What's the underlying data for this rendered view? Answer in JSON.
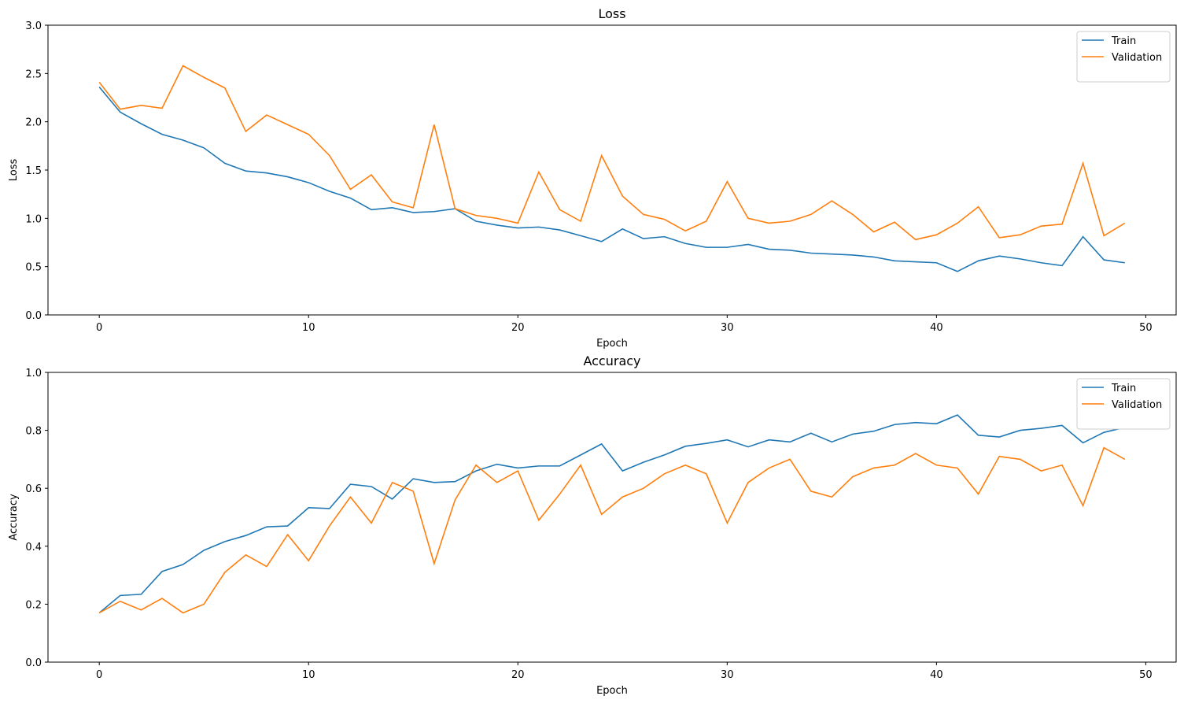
{
  "chart_data": [
    {
      "type": "line",
      "title": "Loss",
      "x_label": "Epoch",
      "y_label": "Loss",
      "x": [
        0,
        1,
        2,
        3,
        4,
        5,
        6,
        7,
        8,
        9,
        10,
        11,
        12,
        13,
        14,
        15,
        16,
        17,
        18,
        19,
        20,
        21,
        22,
        23,
        24,
        25,
        26,
        27,
        28,
        29,
        30,
        31,
        32,
        33,
        34,
        35,
        36,
        37,
        38,
        39,
        40,
        41,
        42,
        43,
        44,
        45,
        46,
        47,
        48,
        49
      ],
      "series": [
        {
          "name": "Train",
          "color": "#1f77b4",
          "values": [
            2.36,
            2.1,
            1.98,
            1.87,
            1.81,
            1.73,
            1.57,
            1.49,
            1.47,
            1.43,
            1.37,
            1.28,
            1.21,
            1.09,
            1.11,
            1.06,
            1.07,
            1.1,
            0.97,
            0.93,
            0.9,
            0.91,
            0.88,
            0.82,
            0.76,
            0.89,
            0.79,
            0.81,
            0.74,
            0.7,
            0.7,
            0.73,
            0.68,
            0.67,
            0.64,
            0.63,
            0.62,
            0.6,
            0.56,
            0.55,
            0.54,
            0.45,
            0.56,
            0.61,
            0.58,
            0.54,
            0.51,
            0.81,
            0.57,
            0.54
          ]
        },
        {
          "name": "Validation",
          "color": "#ff7f0e",
          "values": [
            2.41,
            2.13,
            2.17,
            2.14,
            2.58,
            2.46,
            2.35,
            1.9,
            2.07,
            1.97,
            1.87,
            1.65,
            1.3,
            1.45,
            1.17,
            1.11,
            1.97,
            1.1,
            1.03,
            1.0,
            0.95,
            1.48,
            1.09,
            0.97,
            1.65,
            1.23,
            1.04,
            0.99,
            0.87,
            0.97,
            1.38,
            1.0,
            0.95,
            0.97,
            1.04,
            1.18,
            1.04,
            0.86,
            0.96,
            0.78,
            0.83,
            0.95,
            1.12,
            0.8,
            0.83,
            0.92,
            0.94,
            1.57,
            0.82,
            0.95
          ]
        }
      ],
      "xlim": [
        -2.45,
        51.45
      ],
      "xticks": [
        0,
        10,
        20,
        30,
        40,
        50
      ],
      "ylim": [
        0,
        3
      ],
      "yticks": [
        {
          "value": 0,
          "label": "0.0"
        },
        0.5,
        {
          "value": 1,
          "label": "1.0"
        },
        1.5,
        {
          "value": 2,
          "label": "2.0"
        },
        2.5,
        {
          "value": 3,
          "label": "3.0"
        }
      ],
      "legend": "upper right"
    },
    {
      "type": "line",
      "title": "Accuracy",
      "x_label": "Epoch",
      "y_label": "Accuracy",
      "x": [
        0,
        1,
        2,
        3,
        4,
        5,
        6,
        7,
        8,
        9,
        10,
        11,
        12,
        13,
        14,
        15,
        16,
        17,
        18,
        19,
        20,
        21,
        22,
        23,
        24,
        25,
        26,
        27,
        28,
        29,
        30,
        31,
        32,
        33,
        34,
        35,
        36,
        37,
        38,
        39,
        40,
        41,
        42,
        43,
        44,
        45,
        46,
        47,
        48,
        49
      ],
      "series": [
        {
          "name": "Train",
          "color": "#1f77b4",
          "values": [
            0.17,
            0.23,
            0.234,
            0.313,
            0.337,
            0.386,
            0.416,
            0.437,
            0.467,
            0.47,
            0.533,
            0.53,
            0.614,
            0.606,
            0.563,
            0.633,
            0.62,
            0.623,
            0.66,
            0.683,
            0.67,
            0.677,
            0.677,
            0.715,
            0.753,
            0.66,
            0.69,
            0.715,
            0.745,
            0.755,
            0.767,
            0.743,
            0.767,
            0.76,
            0.79,
            0.76,
            0.787,
            0.797,
            0.82,
            0.827,
            0.823,
            0.853,
            0.783,
            0.777,
            0.8,
            0.807,
            0.817,
            0.757,
            0.793,
            0.81
          ]
        },
        {
          "name": "Validation",
          "color": "#ff7f0e",
          "values": [
            0.17,
            0.21,
            0.18,
            0.22,
            0.17,
            0.2,
            0.31,
            0.37,
            0.33,
            0.44,
            0.35,
            0.47,
            0.57,
            0.48,
            0.62,
            0.59,
            0.34,
            0.56,
            0.68,
            0.62,
            0.66,
            0.49,
            0.58,
            0.68,
            0.51,
            0.57,
            0.6,
            0.65,
            0.68,
            0.65,
            0.48,
            0.62,
            0.67,
            0.7,
            0.59,
            0.57,
            0.64,
            0.67,
            0.68,
            0.72,
            0.68,
            0.67,
            0.58,
            0.71,
            0.7,
            0.66,
            0.68,
            0.54,
            0.74,
            0.7
          ]
        }
      ],
      "xlim": [
        -2.45,
        51.45
      ],
      "xticks": [
        0,
        10,
        20,
        30,
        40,
        50
      ],
      "ylim": [
        0,
        1
      ],
      "yticks": [
        {
          "value": 0,
          "label": "0.0"
        },
        0.2,
        0.4,
        0.6,
        0.8,
        {
          "value": 1,
          "label": "1.0"
        }
      ],
      "legend": "upper right"
    }
  ]
}
